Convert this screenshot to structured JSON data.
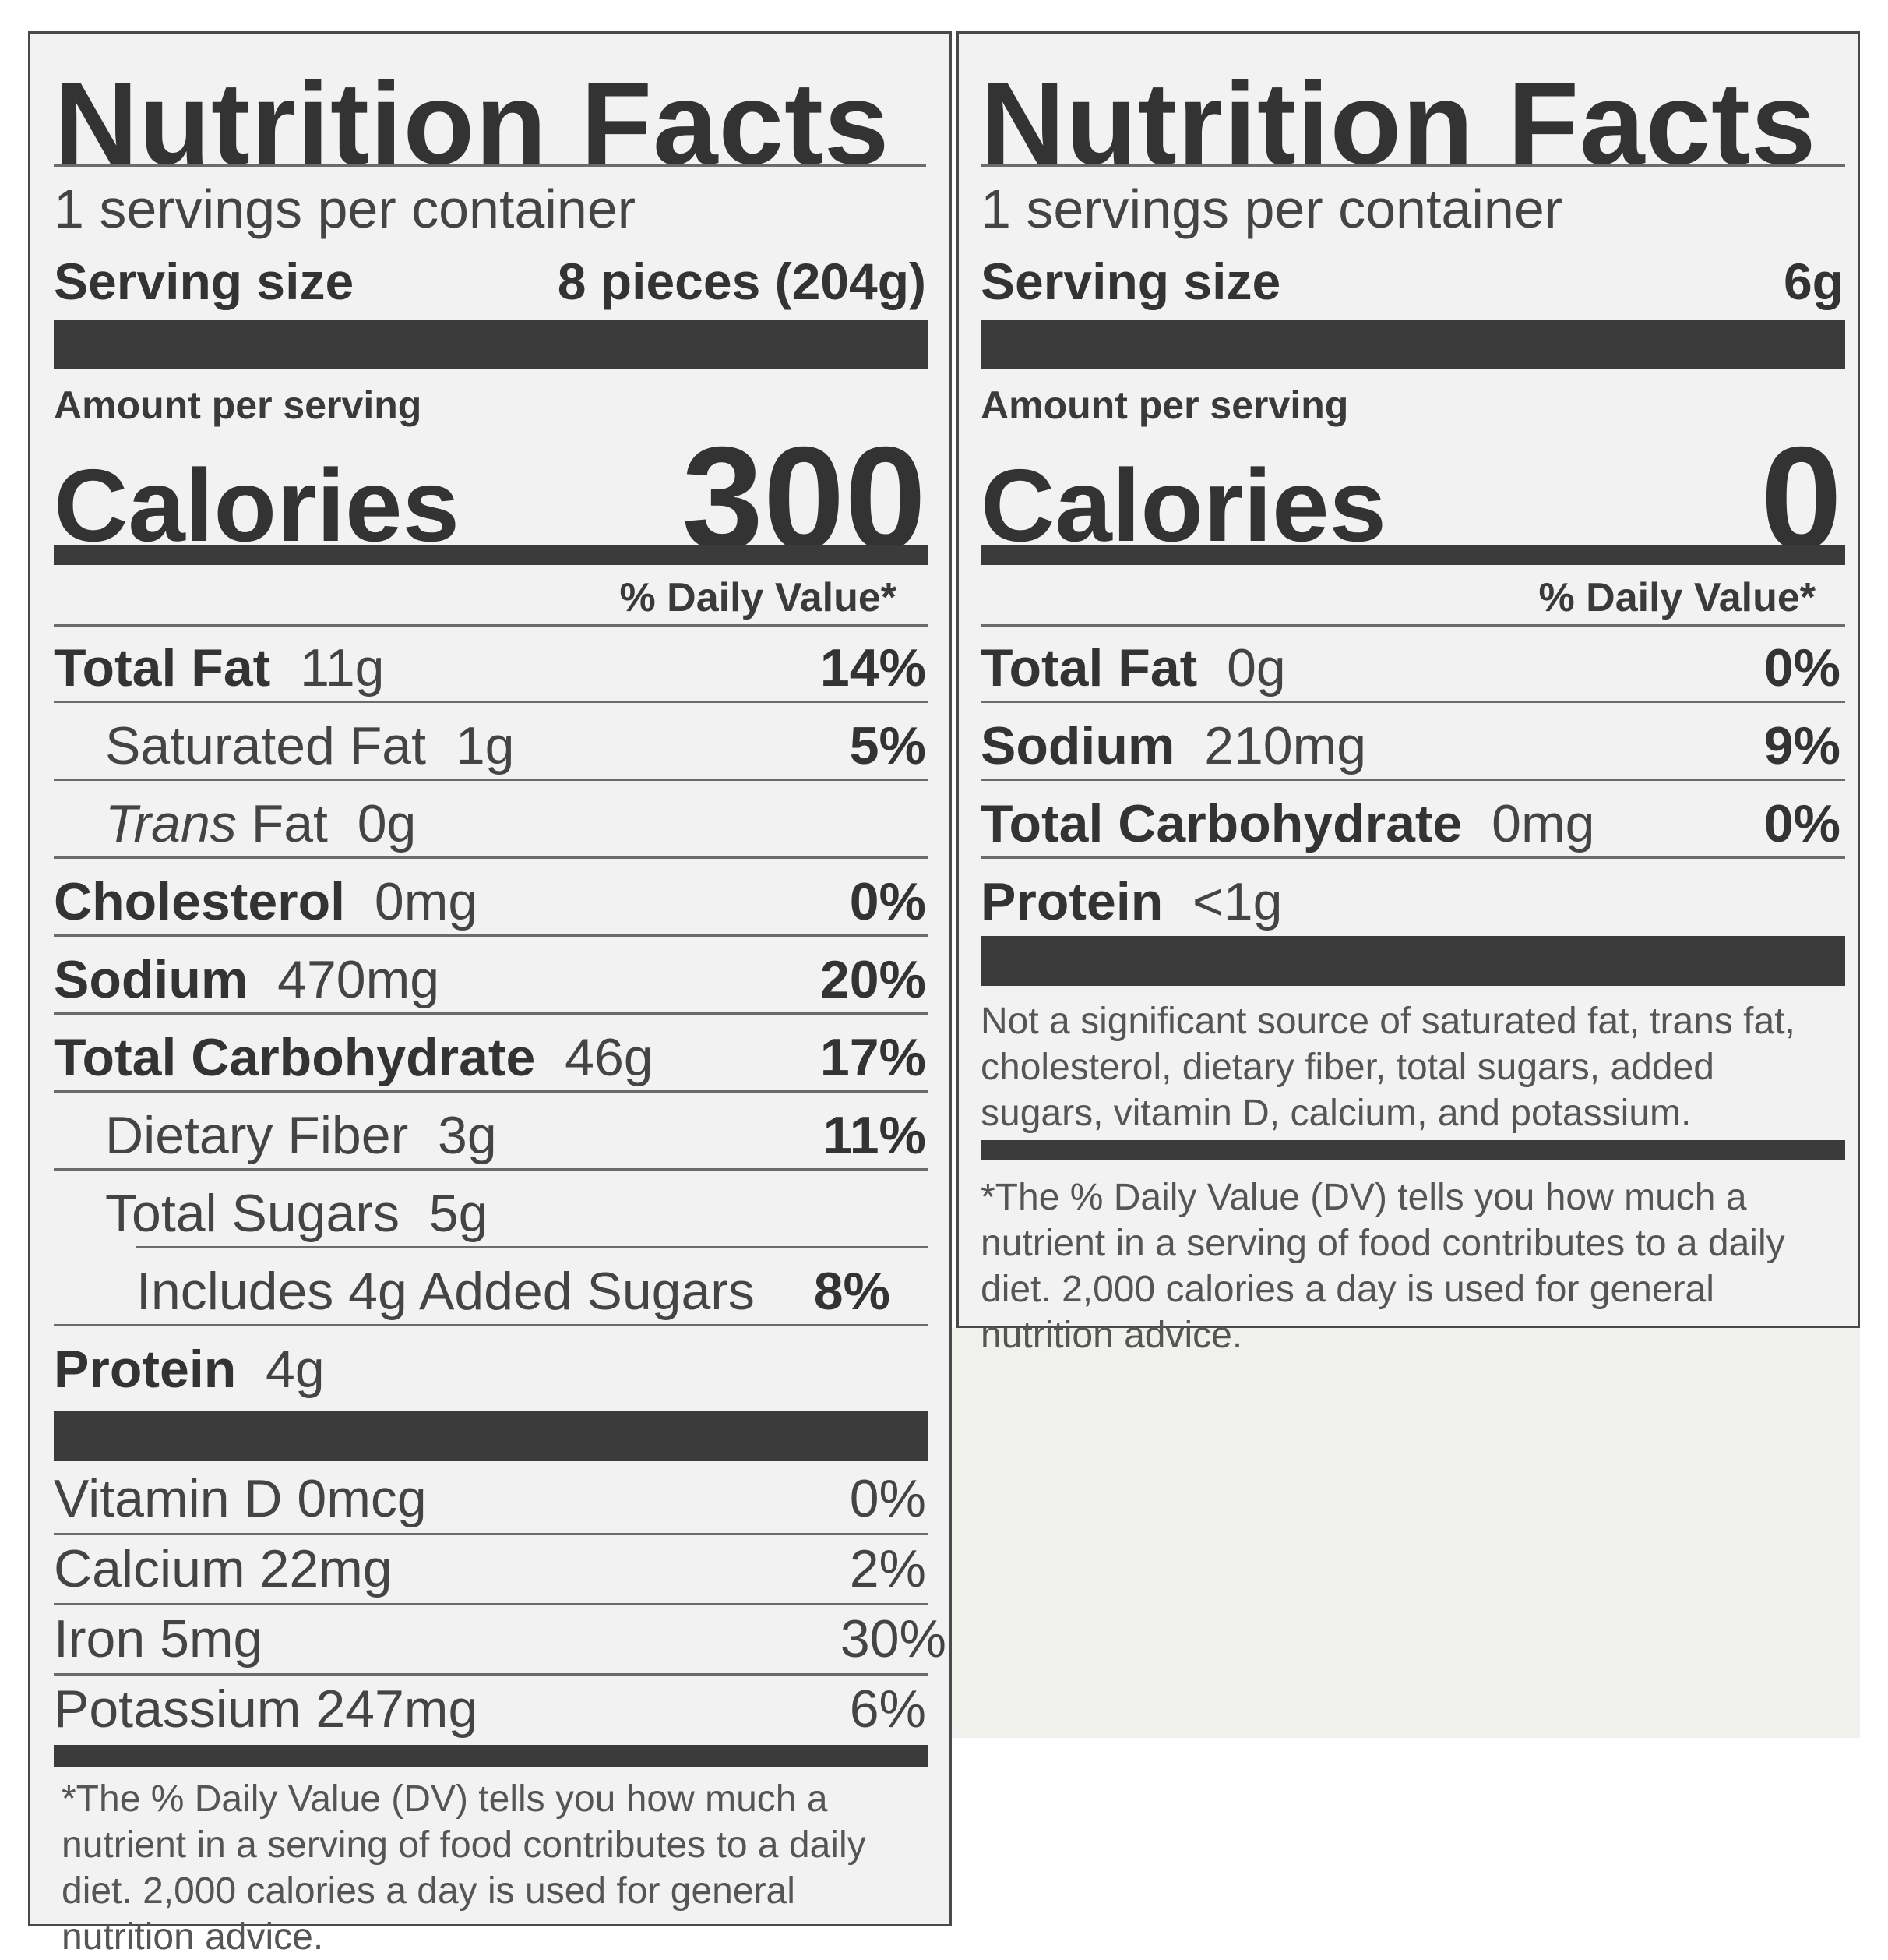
{
  "left": {
    "title": "Nutrition Facts",
    "servings": "1 servings per container",
    "serving_size_label": "Serving size",
    "serving_size_value": "8 pieces (204g)",
    "amount_per_serving": "Amount per serving",
    "calories_label": "Calories",
    "calories_value": "300",
    "dv_header": "% Daily Value*",
    "rows": [
      {
        "name": "Total Fat",
        "amount": "11g",
        "dv": "14%"
      },
      {
        "name": "Saturated Fat",
        "amount": "1g",
        "dv": "5%"
      },
      {
        "name": "Trans",
        "name2": "Fat",
        "amount": "0g",
        "dv": ""
      },
      {
        "name": "Cholesterol",
        "amount": "0mg",
        "dv": "0%"
      },
      {
        "name": "Sodium",
        "amount": "470mg",
        "dv": "20%"
      },
      {
        "name": "Total Carbohydrate",
        "amount": "46g",
        "dv": "17%"
      },
      {
        "name": "Dietary Fiber",
        "amount": "3g",
        "dv": "11%"
      },
      {
        "name": "Total Sugars",
        "amount": "5g",
        "dv": ""
      },
      {
        "name": "Includes 4g Added Sugars",
        "amount": "",
        "dv": "8%"
      },
      {
        "name": "Protein",
        "amount": "4g",
        "dv": ""
      }
    ],
    "vitamins": [
      {
        "text": "Vitamin D  0mcg",
        "dv": "0%"
      },
      {
        "text": "Calcium 22mg",
        "dv": "2%"
      },
      {
        "text": "Iron  5mg",
        "dv": "30%"
      },
      {
        "text": "Potassium  247mg",
        "dv": "6%"
      }
    ],
    "footnote": "*The % Daily Value (DV) tells you how much a nutrient in a serving of food contributes to a daily diet. 2,000 calories a day is used for general nutrition advice."
  },
  "right": {
    "title": "Nutrition Facts",
    "servings": "1 servings per container",
    "serving_size_label": "Serving size",
    "serving_size_value": "6g",
    "amount_per_serving": "Amount per serving",
    "calories_label": "Calories",
    "calories_value": "0",
    "dv_header": "% Daily Value*",
    "rows": [
      {
        "name": "Total Fat",
        "amount": "0g",
        "dv": "0%"
      },
      {
        "name": "Sodium",
        "amount": "210mg",
        "dv": "9%"
      },
      {
        "name": "Total Carbohydrate",
        "amount": "0mg",
        "dv": "0%"
      },
      {
        "name": "Protein",
        "amount": "<1g",
        "dv": ""
      }
    ],
    "not_significant": "Not a significant source of saturated fat, trans fat, cholesterol, dietary fiber, total sugars, added sugars, vitamin D, calcium, and potassium.",
    "footnote": "*The % Daily Value (DV) tells you how much a nutrient in a serving of food contributes to a daily diet. 2,000 calories a day is used for general nutrition advice."
  }
}
